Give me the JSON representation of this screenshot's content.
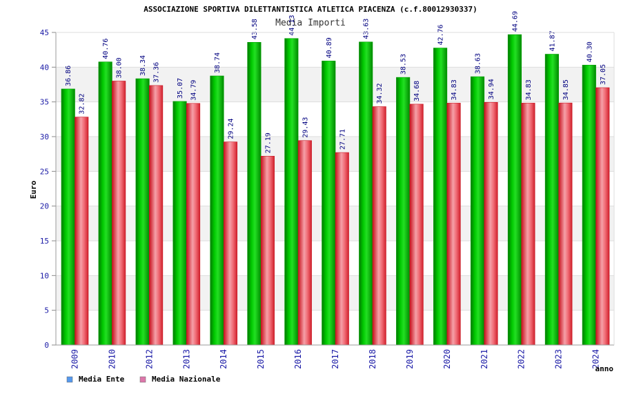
{
  "chart_data": {
    "type": "bar",
    "title": "ASSOCIAZIONE SPORTIVA DILETTANTISTICA ATLETICA PIACENZA (c.f.80012930337)",
    "subtitle": "Media Importi",
    "xlabel": "anno",
    "ylabel": "Euro",
    "ylim": [
      0,
      45
    ],
    "yticks": [
      0,
      5,
      10,
      15,
      20,
      25,
      30,
      35,
      40,
      45
    ],
    "grid": true,
    "legend_position": "bottom-left",
    "categories": [
      "2009",
      "2010",
      "2012",
      "2013",
      "2014",
      "2015",
      "2016",
      "2017",
      "2018",
      "2019",
      "2020",
      "2021",
      "2022",
      "2023",
      "2024"
    ],
    "series": [
      {
        "name": "Media Ente",
        "color": "#00b000",
        "legend_color": "#5599ee",
        "values": [
          36.86,
          40.76,
          38.34,
          35.07,
          38.74,
          43.58,
          44.13,
          40.89,
          43.63,
          38.53,
          42.76,
          38.63,
          44.69,
          41.87,
          40.3
        ],
        "labels": [
          "36.86",
          "40.76",
          "38.34",
          "35.07",
          "38.74",
          "43.58",
          "44.13",
          "40.89",
          "43.63",
          "38.53",
          "42.76",
          "38.63",
          "44.69",
          "41.87",
          "40.30"
        ]
      },
      {
        "name": "Media Nazionale",
        "color": "#e8303a",
        "legend_color": "#dd77aa",
        "values": [
          32.82,
          38.0,
          37.36,
          34.79,
          29.24,
          27.19,
          29.43,
          27.71,
          34.32,
          34.68,
          34.83,
          34.94,
          34.83,
          34.85,
          37.05
        ],
        "labels": [
          "32.82",
          "38.00",
          "37.36",
          "34.79",
          "29.24",
          "27.19",
          "29.43",
          "27.71",
          "34.32",
          "34.68",
          "34.83",
          "34.94",
          "34.83",
          "34.85",
          "37.05"
        ]
      }
    ]
  }
}
